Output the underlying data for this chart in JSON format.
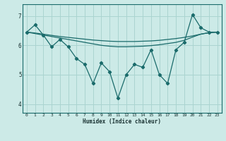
{
  "bg_color": "#cceae7",
  "grid_color": "#aad4d0",
  "line_color": "#1a6b6b",
  "xlabel": "Humidex (Indice chaleur)",
  "ylim": [
    3.7,
    7.4
  ],
  "xlim": [
    -0.5,
    23.5
  ],
  "yticks": [
    4,
    5,
    6,
    7
  ],
  "xticks": [
    0,
    1,
    2,
    3,
    4,
    5,
    6,
    7,
    8,
    9,
    10,
    11,
    12,
    13,
    14,
    15,
    16,
    17,
    18,
    19,
    20,
    21,
    22,
    23
  ],
  "series1_x": [
    0,
    1,
    2,
    3,
    4,
    5,
    6,
    7,
    8,
    9,
    10,
    11,
    12,
    13,
    14,
    15,
    16,
    17,
    18,
    19,
    20,
    21,
    22,
    23
  ],
  "series1_y": [
    6.45,
    6.42,
    6.38,
    6.34,
    6.3,
    6.27,
    6.24,
    6.21,
    6.18,
    6.16,
    6.14,
    6.13,
    6.13,
    6.13,
    6.14,
    6.15,
    6.17,
    6.2,
    6.23,
    6.27,
    6.32,
    6.38,
    6.43,
    6.45
  ],
  "series2_x": [
    0,
    1,
    2,
    3,
    4,
    5,
    6,
    7,
    8,
    9,
    10,
    11,
    12,
    13,
    14,
    15,
    16,
    17,
    18,
    19,
    20,
    21,
    22,
    23
  ],
  "series2_y": [
    6.45,
    6.4,
    6.35,
    6.3,
    6.25,
    6.2,
    6.15,
    6.1,
    6.05,
    6.0,
    5.97,
    5.95,
    5.95,
    5.96,
    5.97,
    5.99,
    6.02,
    6.06,
    6.1,
    6.17,
    6.28,
    6.38,
    6.43,
    6.45
  ],
  "series3_x": [
    0,
    1,
    2,
    3,
    4,
    5,
    6,
    7,
    8,
    9,
    10,
    11,
    12,
    13,
    14,
    15,
    16,
    17,
    18,
    19,
    20,
    21,
    22,
    23
  ],
  "series3_y": [
    6.45,
    6.7,
    6.35,
    5.95,
    6.2,
    5.95,
    5.55,
    5.35,
    4.7,
    5.4,
    5.1,
    4.2,
    5.0,
    5.35,
    5.25,
    5.85,
    5.0,
    4.7,
    5.85,
    6.1,
    7.05,
    6.6,
    6.45,
    6.45
  ]
}
